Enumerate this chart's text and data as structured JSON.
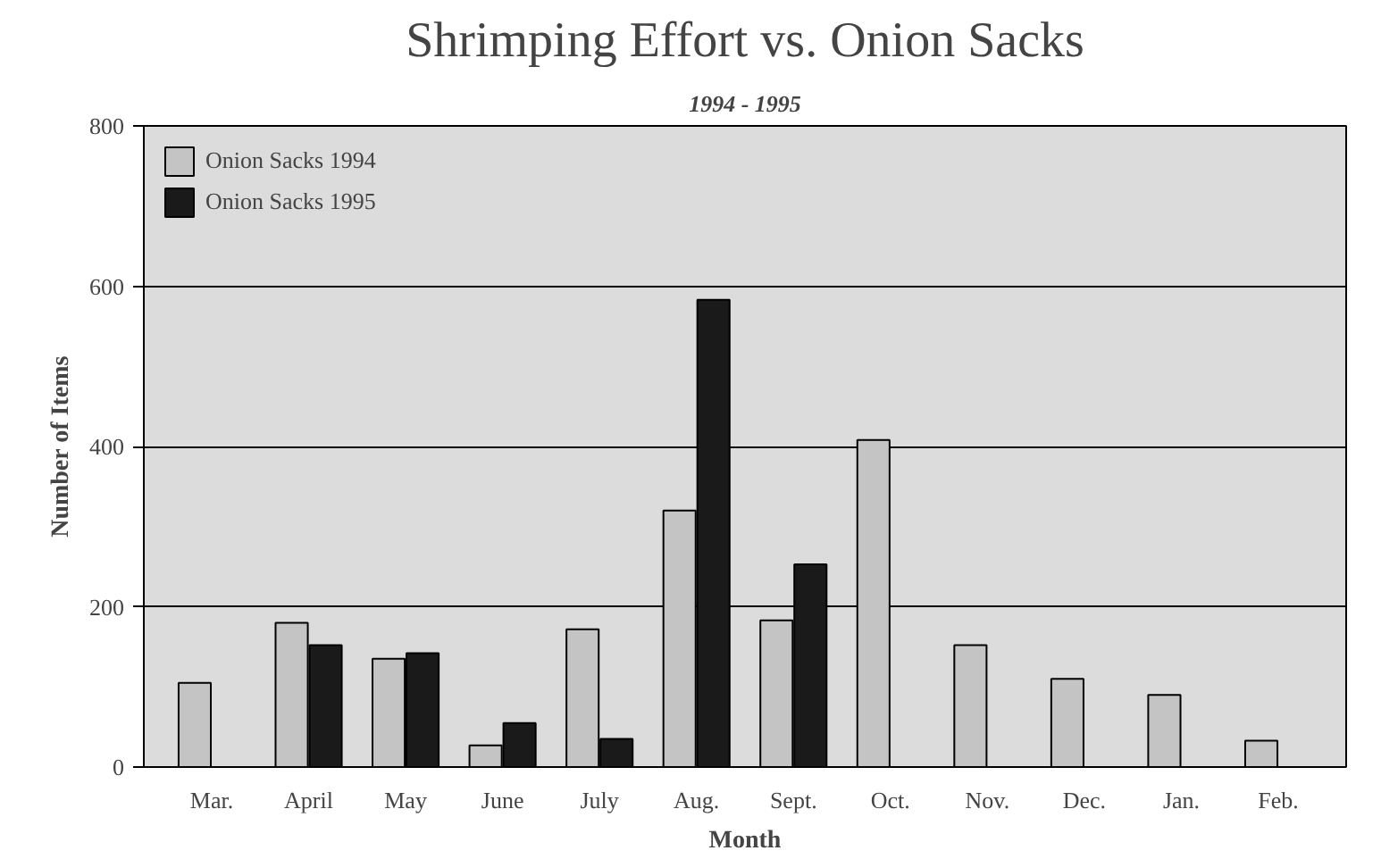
{
  "chart_data": {
    "type": "bar",
    "title": "Shrimping Effort vs. Onion Sacks",
    "subtitle": "1994 - 1995",
    "xlabel": "Month",
    "ylabel": "Number of Items",
    "categories": [
      "Mar.",
      "April",
      "May",
      "June",
      "July",
      "Aug.",
      "Sept.",
      "Oct.",
      "Nov.",
      "Dec.",
      "Jan.",
      "Feb."
    ],
    "series": [
      {
        "name": "Onion Sacks 1994",
        "color": "#c4c4c4",
        "values": [
          105,
          180,
          135,
          27,
          172,
          320,
          183,
          408,
          152,
          110,
          90,
          33
        ]
      },
      {
        "name": "Onion Sacks 1995",
        "color": "#1a1a1a",
        "values": [
          null,
          152,
          142,
          55,
          35,
          583,
          253,
          null,
          null,
          null,
          null,
          null
        ]
      }
    ],
    "ylim": [
      0,
      800
    ],
    "yticks": [
      0,
      200,
      400,
      600,
      800
    ],
    "grid": "y",
    "legend": "top left"
  }
}
